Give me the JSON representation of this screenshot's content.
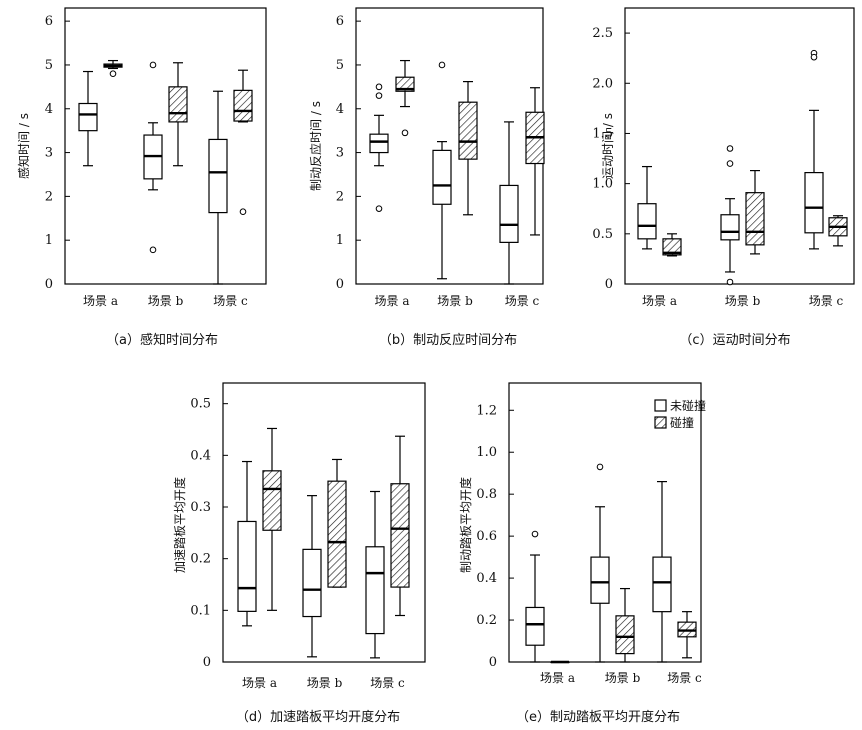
{
  "legend": {
    "uncollided": "未碰撞",
    "collided": "碰撞"
  },
  "chart_data": [
    {
      "type": "boxplot",
      "caption": "（a）感知时间分布",
      "ylabel": "感知时间 / s",
      "ylim": [
        0,
        6.3
      ],
      "yticks": [
        "0",
        "1",
        "2",
        "3",
        "4",
        "5",
        "6"
      ],
      "ytick_values": [
        0,
        1,
        2,
        3,
        4,
        5,
        6
      ],
      "categories": [
        "场景  a",
        "场景  b",
        "场景  c"
      ],
      "series": [
        {
          "name": "未碰撞",
          "boxes": [
            {
              "min": 2.7,
              "q1": 3.5,
              "median": 3.87,
              "q3": 4.12,
              "max": 4.85,
              "outliers": []
            },
            {
              "min": 2.15,
              "q1": 2.4,
              "median": 2.92,
              "q3": 3.4,
              "max": 3.68,
              "outliers": [
                5.0,
                0.78
              ]
            },
            {
              "min": 0.0,
              "q1": 1.63,
              "median": 2.55,
              "q3": 3.3,
              "max": 4.4,
              "outliers": []
            }
          ]
        },
        {
          "name": "碰撞",
          "boxes": [
            {
              "min": 4.92,
              "q1": 4.95,
              "median": 4.98,
              "q3": 5.02,
              "max": 5.1,
              "outliers": [
                4.8
              ]
            },
            {
              "min": 2.7,
              "q1": 3.7,
              "median": 3.9,
              "q3": 4.5,
              "max": 5.05,
              "outliers": []
            },
            {
              "min": 3.7,
              "q1": 3.72,
              "median": 3.95,
              "q3": 4.42,
              "max": 4.88,
              "outliers": [
                1.65
              ]
            }
          ]
        }
      ]
    },
    {
      "type": "boxplot",
      "caption": "（b）制动反应时间分布",
      "ylabel": "制动反应时间 / s",
      "ylim": [
        0,
        6.3
      ],
      "yticks": [
        "0",
        "1",
        "2",
        "3",
        "4",
        "5",
        "6"
      ],
      "ytick_values": [
        0,
        1,
        2,
        3,
        4,
        5,
        6
      ],
      "categories": [
        "场景  a",
        "场景  b",
        "场景  c"
      ],
      "series": [
        {
          "name": "未碰撞",
          "boxes": [
            {
              "min": 2.7,
              "q1": 3.0,
              "median": 3.25,
              "q3": 3.42,
              "max": 3.85,
              "outliers": [
                4.5,
                4.3,
                1.72
              ]
            },
            {
              "min": 0.12,
              "q1": 1.82,
              "median": 2.25,
              "q3": 3.05,
              "max": 3.25,
              "outliers": [
                5.0
              ]
            },
            {
              "min": 0.0,
              "q1": 0.95,
              "median": 1.35,
              "q3": 2.25,
              "max": 3.7,
              "outliers": []
            }
          ]
        },
        {
          "name": "碰撞",
          "boxes": [
            {
              "min": 4.05,
              "q1": 4.4,
              "median": 4.45,
              "q3": 4.72,
              "max": 5.1,
              "outliers": [
                3.45
              ]
            },
            {
              "min": 1.58,
              "q1": 2.85,
              "median": 3.25,
              "q3": 4.15,
              "max": 4.62,
              "outliers": []
            },
            {
              "min": 1.12,
              "q1": 2.75,
              "median": 3.35,
              "q3": 3.92,
              "max": 4.48,
              "outliers": []
            }
          ]
        }
      ]
    },
    {
      "type": "boxplot",
      "caption": "（c）运动时间分布",
      "ylabel": "运动时间 / s",
      "ylim": [
        0,
        2.75
      ],
      "yticks": [
        "0",
        "0.5",
        "1.0",
        "1.5",
        "2.0",
        "2.5"
      ],
      "ytick_values": [
        0,
        0.5,
        1.0,
        1.5,
        2.0,
        2.5
      ],
      "categories": [
        "场景  a",
        "场景  b",
        "场景  c"
      ],
      "series": [
        {
          "name": "未碰撞",
          "boxes": [
            {
              "min": 0.35,
              "q1": 0.45,
              "median": 0.58,
              "q3": 0.8,
              "max": 1.17,
              "outliers": []
            },
            {
              "min": 0.12,
              "q1": 0.44,
              "median": 0.52,
              "q3": 0.69,
              "max": 0.85,
              "outliers": [
                1.35,
                1.2,
                0.02
              ]
            },
            {
              "min": 0.35,
              "q1": 0.51,
              "median": 0.76,
              "q3": 1.11,
              "max": 1.73,
              "outliers": [
                2.3,
                2.26
              ]
            }
          ]
        },
        {
          "name": "碰撞",
          "boxes": [
            {
              "min": 0.28,
              "q1": 0.29,
              "median": 0.31,
              "q3": 0.45,
              "max": 0.5,
              "outliers": []
            },
            {
              "min": 0.3,
              "q1": 0.39,
              "median": 0.52,
              "q3": 0.91,
              "max": 1.13,
              "outliers": []
            },
            {
              "min": 0.38,
              "q1": 0.48,
              "median": 0.57,
              "q3": 0.66,
              "max": 0.68,
              "outliers": []
            }
          ]
        }
      ]
    },
    {
      "type": "boxplot",
      "caption": "（d）加速踏板平均开度分布",
      "ylabel": "加速踏板平均开度",
      "ylim": [
        0,
        0.54
      ],
      "yticks": [
        "0",
        "0.1",
        "0.2",
        "0.3",
        "0.4",
        "0.5"
      ],
      "ytick_values": [
        0,
        0.1,
        0.2,
        0.3,
        0.4,
        0.5
      ],
      "categories": [
        "场景  a",
        "场景  b",
        "场景  c"
      ],
      "series": [
        {
          "name": "未碰撞",
          "boxes": [
            {
              "min": 0.07,
              "q1": 0.098,
              "median": 0.143,
              "q3": 0.272,
              "max": 0.388,
              "outliers": []
            },
            {
              "min": 0.01,
              "q1": 0.088,
              "median": 0.14,
              "q3": 0.218,
              "max": 0.322,
              "outliers": []
            },
            {
              "min": 0.008,
              "q1": 0.055,
              "median": 0.172,
              "q3": 0.223,
              "max": 0.33,
              "outliers": []
            }
          ]
        },
        {
          "name": "碰撞",
          "boxes": [
            {
              "min": 0.1,
              "q1": 0.255,
              "median": 0.335,
              "q3": 0.37,
              "max": 0.452,
              "outliers": []
            },
            {
              "min": 0.145,
              "q1": 0.145,
              "median": 0.232,
              "q3": 0.35,
              "max": 0.392,
              "outliers": []
            },
            {
              "min": 0.09,
              "q1": 0.145,
              "median": 0.258,
              "q3": 0.345,
              "max": 0.437,
              "outliers": []
            }
          ]
        }
      ]
    },
    {
      "type": "boxplot",
      "caption": "（e）制动踏板平均开度分布",
      "ylabel": "制动踏板平均开度",
      "ylim": [
        0,
        1.33
      ],
      "yticks": [
        "0",
        "0.2",
        "0.4",
        "0.6",
        "0.8",
        "1.0",
        "1.2"
      ],
      "ytick_values": [
        0,
        0.2,
        0.4,
        0.6,
        0.8,
        1.0,
        1.2
      ],
      "categories": [
        "场景  a",
        "场景  b",
        "场景  c"
      ],
      "series": [
        {
          "name": "未碰撞",
          "boxes": [
            {
              "min": 0.0,
              "q1": 0.08,
              "median": 0.18,
              "q3": 0.26,
              "max": 0.51,
              "outliers": [
                0.61
              ]
            },
            {
              "min": 0.0,
              "q1": 0.28,
              "median": 0.38,
              "q3": 0.5,
              "max": 0.74,
              "outliers": [
                0.93
              ]
            },
            {
              "min": 0.0,
              "q1": 0.24,
              "median": 0.38,
              "q3": 0.5,
              "max": 0.86,
              "outliers": []
            }
          ]
        },
        {
          "name": "碰撞",
          "boxes": [
            {
              "min": 0.0,
              "q1": 0.0,
              "median": 0.0,
              "q3": 0.0,
              "max": 0.0,
              "outliers": []
            },
            {
              "min": 0.0,
              "q1": 0.04,
              "median": 0.12,
              "q3": 0.22,
              "max": 0.35,
              "outliers": []
            },
            {
              "min": 0.02,
              "q1": 0.12,
              "median": 0.15,
              "q3": 0.19,
              "max": 0.24,
              "outliers": []
            }
          ]
        }
      ]
    }
  ]
}
